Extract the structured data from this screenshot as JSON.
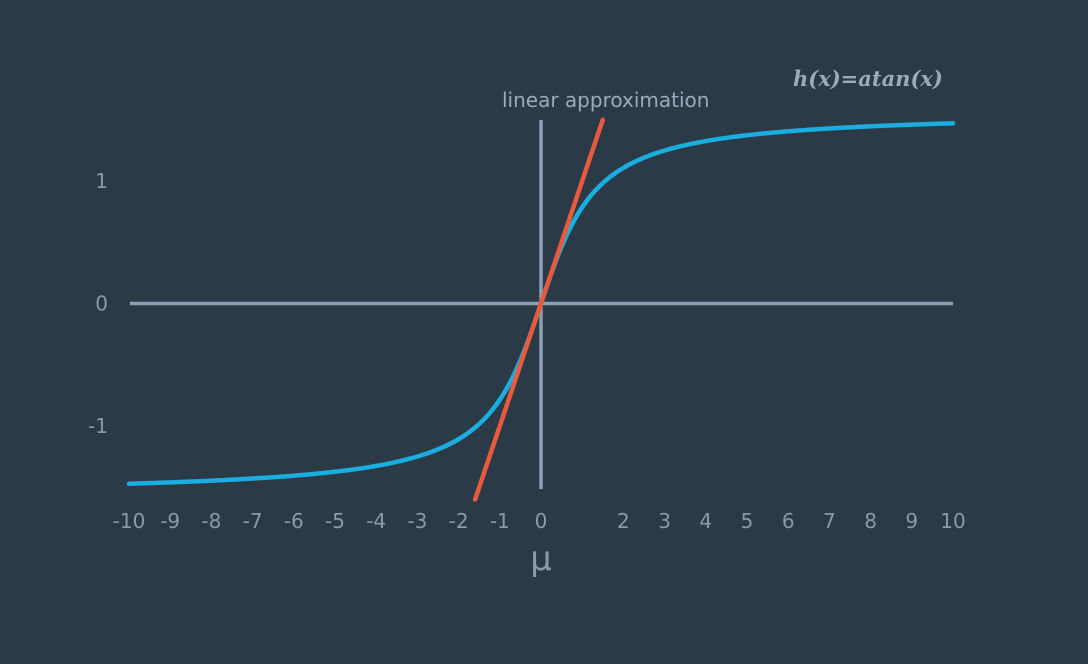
{
  "chart_data": {
    "type": "line",
    "xlabel": "μ",
    "ylabel": "",
    "x_ticks": [
      "-10",
      "-9",
      "-8",
      "-7",
      "-6",
      "-5",
      "-4",
      "-3",
      "-2",
      "-1",
      "0",
      "2",
      "3",
      "4",
      "5",
      "6",
      "7",
      "8",
      "9",
      "10"
    ],
    "y_ticks": [
      {
        "value": 1,
        "label": "1"
      },
      {
        "value": 0,
        "label": "0"
      },
      {
        "value": -1,
        "label": "-1"
      }
    ],
    "xlim": [
      -10,
      10
    ],
    "ylim": [
      -1.6,
      1.6
    ],
    "grid": false,
    "series": [
      {
        "name": "h(x)=atan(x)",
        "function": "atan",
        "color": "#1aade0",
        "x": [
          -10,
          -9,
          -8,
          -7,
          -6,
          -5,
          -4,
          -3,
          -2,
          -1.5,
          -1,
          -0.5,
          0,
          0.5,
          1,
          1.5,
          2,
          3,
          4,
          5,
          6,
          7,
          8,
          9,
          10
        ],
        "y": [
          -1.47,
          -1.46,
          -1.45,
          -1.43,
          -1.41,
          -1.37,
          -1.33,
          -1.25,
          -1.11,
          -0.98,
          -0.79,
          -0.46,
          0,
          0.46,
          0.79,
          0.98,
          1.11,
          1.25,
          1.33,
          1.37,
          1.41,
          1.43,
          1.45,
          1.46,
          1.47
        ]
      },
      {
        "name": "linear approximation",
        "function": "linear",
        "color": "#e95a3c",
        "x": [
          -1.6,
          1.5
        ],
        "y": [
          -1.6,
          1.5
        ]
      }
    ],
    "annotations": [
      {
        "text": "linear approximation",
        "x": 0.1,
        "y": 1.6
      },
      {
        "text": "h(x)=atan(x)",
        "x": 7.5,
        "y": 1.8
      }
    ]
  }
}
